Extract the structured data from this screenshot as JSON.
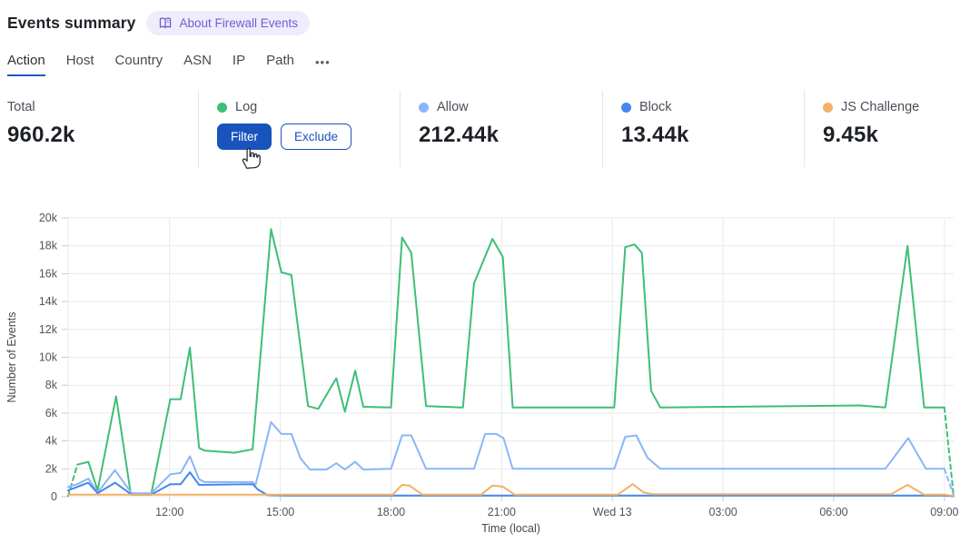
{
  "page": {
    "title": "Events summary"
  },
  "about": {
    "label": "About Firewall Events",
    "icon": "open-book-icon"
  },
  "tabs": {
    "items": [
      "Action",
      "Host",
      "Country",
      "ASN",
      "IP",
      "Path"
    ],
    "active": "Action",
    "more_label": "•••"
  },
  "cards": {
    "total": {
      "label": "Total",
      "value": "960.2k"
    },
    "log": {
      "label": "Log",
      "dot_color": "#3fbe75",
      "filter_label": "Filter",
      "exclude_label": "Exclude"
    },
    "allow": {
      "label": "Allow",
      "value": "212.44k",
      "dot_color": "#89b6f8"
    },
    "block": {
      "label": "Block",
      "value": "13.44k",
      "dot_color": "#4587f0"
    },
    "js_challenge": {
      "label": "JS Challenge",
      "value": "9.45k",
      "dot_color": "#f1b166"
    }
  },
  "colors": {
    "accent_blue": "#1953bc",
    "tab_underline": "#1f5bbd",
    "badge_bg": "#efedfb",
    "badge_text": "#6e5ed6",
    "grid": "#e9eaec",
    "tick": "#c6c9cc",
    "separator": "#e2e4e7"
  },
  "chart_data": {
    "type": "line",
    "title": "",
    "xlabel": "Time (local)",
    "ylabel": "Number of Events",
    "value_unit": "thousands of events (k)",
    "x_unit": "hours from chart start (24h window ending ~09:15 Wed)",
    "xlim_hours": [
      0,
      24
    ],
    "ylim_k": [
      0,
      20
    ],
    "grid": true,
    "legend_position": "in stat cards above chart",
    "y_ticks": [
      {
        "v": 0,
        "label": "0"
      },
      {
        "v": 2,
        "label": "2k"
      },
      {
        "v": 4,
        "label": "4k"
      },
      {
        "v": 6,
        "label": "6k"
      },
      {
        "v": 8,
        "label": "8k"
      },
      {
        "v": 10,
        "label": "10k"
      },
      {
        "v": 12,
        "label": "12k"
      },
      {
        "v": 14,
        "label": "14k"
      },
      {
        "v": 16,
        "label": "16k"
      },
      {
        "v": 18,
        "label": "18k"
      },
      {
        "v": 20,
        "label": "20k"
      }
    ],
    "x_ticks": [
      {
        "h": 2.75,
        "label": "12:00"
      },
      {
        "h": 5.75,
        "label": "15:00"
      },
      {
        "h": 8.75,
        "label": "18:00"
      },
      {
        "h": 11.75,
        "label": "21:00"
      },
      {
        "h": 14.75,
        "label": "Wed 13"
      },
      {
        "h": 17.75,
        "label": "03:00"
      },
      {
        "h": 20.75,
        "label": "06:00"
      },
      {
        "h": 23.75,
        "label": "09:00"
      }
    ],
    "series": [
      {
        "name": "Log",
        "color": "#3fbe75",
        "dashed_start": true,
        "dashed_end": true,
        "points": [
          [
            0,
            0.05
          ],
          [
            0.25,
            2.3
          ],
          [
            0.55,
            2.5
          ],
          [
            0.8,
            0.45
          ],
          [
            1.3,
            7.2
          ],
          [
            1.7,
            0.15
          ],
          [
            2.25,
            0.15
          ],
          [
            2.77,
            7.0
          ],
          [
            3.05,
            7.0
          ],
          [
            3.3,
            10.7
          ],
          [
            3.55,
            3.5
          ],
          [
            3.7,
            3.3
          ],
          [
            4.5,
            3.15
          ],
          [
            5.0,
            3.4
          ],
          [
            5.5,
            19.2
          ],
          [
            5.78,
            16.1
          ],
          [
            6.05,
            15.9
          ],
          [
            6.5,
            6.5
          ],
          [
            6.78,
            6.3
          ],
          [
            7.27,
            8.5
          ],
          [
            7.5,
            6.1
          ],
          [
            7.78,
            9.05
          ],
          [
            8.0,
            6.45
          ],
          [
            8.75,
            6.4
          ],
          [
            9.05,
            18.6
          ],
          [
            9.3,
            17.5
          ],
          [
            9.7,
            6.5
          ],
          [
            10.7,
            6.4
          ],
          [
            11.0,
            15.3
          ],
          [
            11.5,
            18.5
          ],
          [
            11.78,
            17.2
          ],
          [
            12.05,
            6.4
          ],
          [
            14.8,
            6.4
          ],
          [
            15.1,
            17.9
          ],
          [
            15.35,
            18.1
          ],
          [
            15.55,
            17.5
          ],
          [
            15.8,
            7.6
          ],
          [
            16.05,
            6.4
          ],
          [
            21.45,
            6.55
          ],
          [
            22.15,
            6.4
          ],
          [
            22.75,
            18.0
          ],
          [
            23.2,
            6.4
          ],
          [
            23.75,
            6.4
          ],
          [
            24,
            0.05
          ]
        ]
      },
      {
        "name": "Allow",
        "color": "#89b6f8",
        "dashed_start": false,
        "dashed_end": true,
        "points": [
          [
            0,
            0.7
          ],
          [
            0.25,
            0.9
          ],
          [
            0.55,
            1.3
          ],
          [
            0.8,
            0.3
          ],
          [
            1.27,
            1.9
          ],
          [
            1.72,
            0.25
          ],
          [
            2.25,
            0.25
          ],
          [
            2.77,
            1.6
          ],
          [
            3.05,
            1.7
          ],
          [
            3.3,
            2.9
          ],
          [
            3.55,
            1.25
          ],
          [
            3.7,
            1.05
          ],
          [
            5.0,
            1.05
          ],
          [
            5.08,
            0.85
          ],
          [
            5.5,
            5.35
          ],
          [
            5.78,
            4.5
          ],
          [
            6.05,
            4.5
          ],
          [
            6.3,
            2.75
          ],
          [
            6.55,
            1.95
          ],
          [
            7.0,
            1.95
          ],
          [
            7.27,
            2.4
          ],
          [
            7.5,
            1.95
          ],
          [
            7.78,
            2.5
          ],
          [
            8.0,
            1.95
          ],
          [
            8.75,
            2.0
          ],
          [
            9.05,
            4.4
          ],
          [
            9.3,
            4.4
          ],
          [
            9.7,
            2.0
          ],
          [
            11.0,
            2.0
          ],
          [
            11.3,
            4.5
          ],
          [
            11.6,
            4.5
          ],
          [
            11.8,
            4.2
          ],
          [
            12.05,
            2.0
          ],
          [
            14.8,
            2.0
          ],
          [
            15.1,
            4.3
          ],
          [
            15.4,
            4.4
          ],
          [
            15.7,
            2.8
          ],
          [
            16.05,
            2.0
          ],
          [
            22.15,
            2.0
          ],
          [
            22.77,
            4.2
          ],
          [
            23.25,
            2.0
          ],
          [
            23.75,
            2.0
          ],
          [
            24,
            0.1
          ]
        ]
      },
      {
        "name": "Block",
        "color": "#4587f0",
        "dashed_start": false,
        "dashed_end": false,
        "points": [
          [
            0,
            0.45
          ],
          [
            0.55,
            1.0
          ],
          [
            0.8,
            0.25
          ],
          [
            1.27,
            1.0
          ],
          [
            1.72,
            0.15
          ],
          [
            2.25,
            0.15
          ],
          [
            2.77,
            0.9
          ],
          [
            3.05,
            0.9
          ],
          [
            3.3,
            1.75
          ],
          [
            3.55,
            0.85
          ],
          [
            5.0,
            0.9
          ],
          [
            5.15,
            0.5
          ],
          [
            5.4,
            0.12
          ],
          [
            5.9,
            0.08
          ],
          [
            23.75,
            0.08
          ],
          [
            24,
            0.03
          ]
        ]
      },
      {
        "name": "JS Challenge",
        "color": "#f1b166",
        "dashed_start": false,
        "dashed_end": false,
        "points": [
          [
            0,
            0.15
          ],
          [
            8.8,
            0.15
          ],
          [
            9.05,
            0.85
          ],
          [
            9.25,
            0.8
          ],
          [
            9.6,
            0.15
          ],
          [
            11.2,
            0.15
          ],
          [
            11.5,
            0.8
          ],
          [
            11.78,
            0.72
          ],
          [
            12.1,
            0.15
          ],
          [
            14.9,
            0.15
          ],
          [
            15.3,
            0.9
          ],
          [
            15.6,
            0.3
          ],
          [
            15.85,
            0.18
          ],
          [
            22.3,
            0.18
          ],
          [
            22.75,
            0.85
          ],
          [
            23.2,
            0.15
          ],
          [
            23.75,
            0.15
          ],
          [
            24,
            0.06
          ]
        ]
      }
    ]
  }
}
